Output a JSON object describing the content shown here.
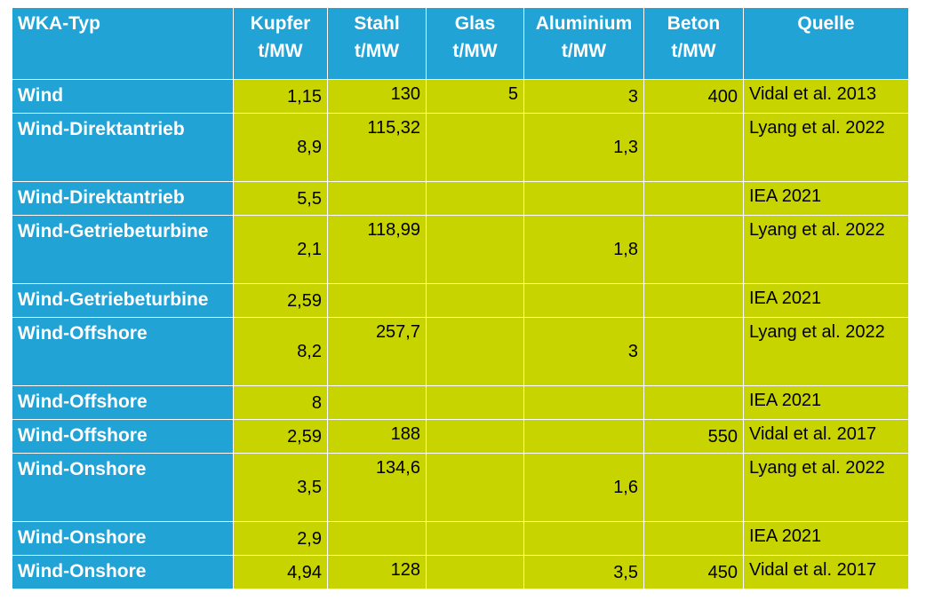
{
  "headers": [
    {
      "lines": [
        "WKA-Typ"
      ]
    },
    {
      "lines": [
        "Kupfer",
        "t/MW"
      ]
    },
    {
      "lines": [
        "Stahl",
        "t/MW"
      ]
    },
    {
      "lines": [
        "Glas",
        "t/MW"
      ]
    },
    {
      "lines": [
        "Aluminium",
        "t/MW"
      ]
    },
    {
      "lines": [
        "Beton",
        "t/MW"
      ]
    },
    {
      "lines": [
        "Quelle"
      ]
    }
  ],
  "rows": [
    {
      "type": "Wind",
      "kupfer": "1,15",
      "stahl": "130",
      "glas": "5",
      "aluminium": "3",
      "beton": "400",
      "quelle": "Vidal et al. 2013"
    },
    {
      "type": "Wind-Direktantrieb",
      "kupfer": "8,9",
      "stahl": "115,32",
      "glas": "",
      "aluminium": "1,3",
      "beton": "",
      "quelle": "Lyang et al. 2022"
    },
    {
      "type": "Wind-Direktantrieb",
      "kupfer": "5,5",
      "stahl": "",
      "glas": "",
      "aluminium": "",
      "beton": "",
      "quelle": "IEA 2021"
    },
    {
      "type": "Wind-Getriebeturbine",
      "kupfer": "2,1",
      "stahl": "118,99",
      "glas": "",
      "aluminium": "1,8",
      "beton": "",
      "quelle": "Lyang et al. 2022"
    },
    {
      "type": "Wind-Getriebeturbine",
      "kupfer": "2,59",
      "stahl": "",
      "glas": "",
      "aluminium": "",
      "beton": "",
      "quelle": "IEA 2021"
    },
    {
      "type": "Wind-Offshore",
      "kupfer": "8,2",
      "stahl": "257,7",
      "glas": "",
      "aluminium": "3",
      "beton": "",
      "quelle": "Lyang et al. 2022"
    },
    {
      "type": "Wind-Offshore",
      "kupfer": "8",
      "stahl": "",
      "glas": "",
      "aluminium": "",
      "beton": "",
      "quelle": "IEA 2021"
    },
    {
      "type": "Wind-Offshore",
      "kupfer": "2,59",
      "stahl": "188",
      "glas": "",
      "aluminium": "",
      "beton": "550",
      "quelle": "Vidal et al. 2017"
    },
    {
      "type": "Wind-Onshore",
      "kupfer": "3,5",
      "stahl": "134,6",
      "glas": "",
      "aluminium": "1,6",
      "beton": "",
      "quelle": "Lyang et al. 2022"
    },
    {
      "type": "Wind-Onshore",
      "kupfer": "2,9",
      "stahl": "",
      "glas": "",
      "aluminium": "",
      "beton": "",
      "quelle": "IEA 2021"
    },
    {
      "type": "Wind-Onshore",
      "kupfer": "4,94",
      "stahl": "128",
      "glas": "",
      "aluminium": "3,5",
      "beton": "450",
      "quelle": "Vidal et al. 2017"
    }
  ],
  "colors": {
    "header_bg": "#22a3d6",
    "cell_bg": "#c8d400",
    "header_text": "#ffffff",
    "cell_text": "#000000"
  }
}
